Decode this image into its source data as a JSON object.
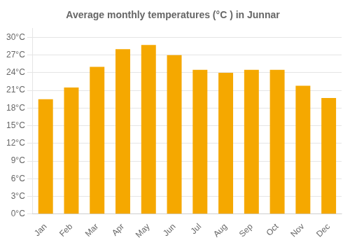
{
  "chart_data": {
    "type": "bar",
    "title": "Average monthly temperatures (°C ) in Junnar",
    "categories": [
      "Jan",
      "Feb",
      "Mar",
      "Apr",
      "May",
      "Jun",
      "Jul",
      "Aug",
      "Sep",
      "Oct",
      "Nov",
      "Dec"
    ],
    "values": [
      19.5,
      21.5,
      25.0,
      28.0,
      28.7,
      27.0,
      24.5,
      24.0,
      24.5,
      24.5,
      21.8,
      19.7
    ],
    "color": "#F5A800",
    "ylim": [
      0,
      31.5
    ],
    "yticks": [
      {
        "value": 0,
        "label": "0°C"
      },
      {
        "value": 3,
        "label": "3°C"
      },
      {
        "value": 6,
        "label": "6°C"
      },
      {
        "value": 9,
        "label": "9°C"
      },
      {
        "value": 12,
        "label": "12°C"
      },
      {
        "value": 15,
        "label": "15°C"
      },
      {
        "value": 18,
        "label": "18°C"
      },
      {
        "value": 21,
        "label": "21°C"
      },
      {
        "value": 24,
        "label": "24°C"
      },
      {
        "value": 27,
        "label": "27°C"
      },
      {
        "value": 30,
        "label": "30°C"
      }
    ],
    "grid": true
  }
}
